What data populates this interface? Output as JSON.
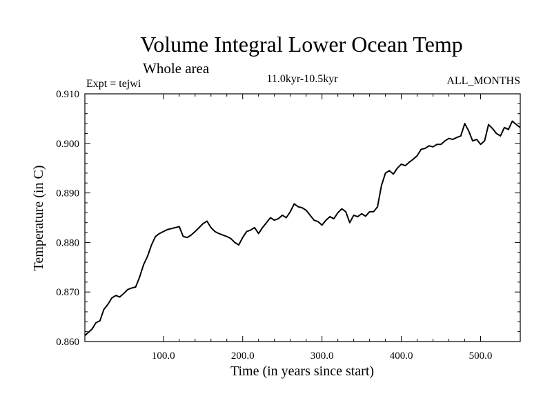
{
  "chart_data": {
    "type": "line",
    "title": "Volume Integral Lower Ocean Temp",
    "subtitle": "Whole area",
    "experiment_label": "Expt = tejwi",
    "period_label": "11.0kyr-10.5kyr",
    "months_label": "ALL_MONTHS",
    "xlabel": "Time (in years since start)",
    "ylabel": "Temperature (in C)",
    "xlim": [
      1,
      550
    ],
    "ylim": [
      0.86,
      0.91
    ],
    "x_ticks": [
      {
        "value": 100,
        "label": "100.0"
      },
      {
        "value": 200,
        "label": "200.0"
      },
      {
        "value": 300,
        "label": "300.0"
      },
      {
        "value": 400,
        "label": "400.0"
      },
      {
        "value": 500,
        "label": "500.0"
      }
    ],
    "y_ticks": [
      {
        "value": 0.86,
        "label": "0.860"
      },
      {
        "value": 0.87,
        "label": "0.870"
      },
      {
        "value": 0.88,
        "label": "0.880"
      },
      {
        "value": 0.89,
        "label": "0.890"
      },
      {
        "value": 0.9,
        "label": "0.900"
      },
      {
        "value": 0.91,
        "label": "0.910"
      }
    ],
    "grid": false,
    "series": [
      {
        "name": "Volume Integral Lower Ocean Temp",
        "x": [
          1,
          5,
          10,
          15,
          20,
          25,
          30,
          35,
          40,
          45,
          50,
          55,
          60,
          65,
          70,
          75,
          80,
          85,
          90,
          95,
          100,
          105,
          110,
          115,
          120,
          125,
          130,
          135,
          140,
          145,
          150,
          155,
          160,
          165,
          170,
          175,
          180,
          185,
          190,
          195,
          200,
          205,
          210,
          215,
          220,
          225,
          230,
          235,
          240,
          245,
          250,
          255,
          260,
          265,
          270,
          275,
          280,
          285,
          290,
          295,
          300,
          305,
          310,
          315,
          320,
          325,
          330,
          335,
          340,
          345,
          350,
          355,
          360,
          365,
          370,
          375,
          380,
          385,
          390,
          395,
          400,
          405,
          410,
          415,
          420,
          425,
          430,
          435,
          440,
          445,
          450,
          455,
          460,
          465,
          470,
          475,
          480,
          485,
          490,
          495,
          500,
          505,
          510,
          515,
          520,
          525,
          530,
          535,
          540,
          545,
          550
        ],
        "values": [
          0.8612,
          0.8618,
          0.8625,
          0.8638,
          0.8642,
          0.8665,
          0.8675,
          0.8688,
          0.8693,
          0.869,
          0.8697,
          0.8705,
          0.8708,
          0.871,
          0.873,
          0.8755,
          0.8772,
          0.8795,
          0.8812,
          0.8818,
          0.8822,
          0.8826,
          0.8828,
          0.883,
          0.8832,
          0.8812,
          0.881,
          0.8815,
          0.8822,
          0.883,
          0.8838,
          0.8843,
          0.883,
          0.8822,
          0.8818,
          0.8815,
          0.8812,
          0.8808,
          0.88,
          0.8795,
          0.881,
          0.8822,
          0.8825,
          0.883,
          0.8818,
          0.883,
          0.884,
          0.885,
          0.8845,
          0.8848,
          0.8855,
          0.885,
          0.8862,
          0.8878,
          0.8872,
          0.887,
          0.8865,
          0.8855,
          0.8845,
          0.8842,
          0.8835,
          0.8845,
          0.8852,
          0.8848,
          0.886,
          0.8868,
          0.8862,
          0.884,
          0.8855,
          0.8852,
          0.8858,
          0.8853,
          0.8862,
          0.8862,
          0.8872,
          0.8915,
          0.894,
          0.8945,
          0.8938,
          0.895,
          0.8958,
          0.8955,
          0.8962,
          0.8968,
          0.8975,
          0.8988,
          0.899,
          0.8995,
          0.8993,
          0.8998,
          0.8998,
          0.9005,
          0.901,
          0.9008,
          0.9012,
          0.9015,
          0.904,
          0.9025,
          0.9005,
          0.9008,
          0.8998,
          0.9005,
          0.9038,
          0.903,
          0.902,
          0.9015,
          0.9032,
          0.9028,
          0.9045,
          0.9038,
          0.9032
        ]
      }
    ]
  }
}
